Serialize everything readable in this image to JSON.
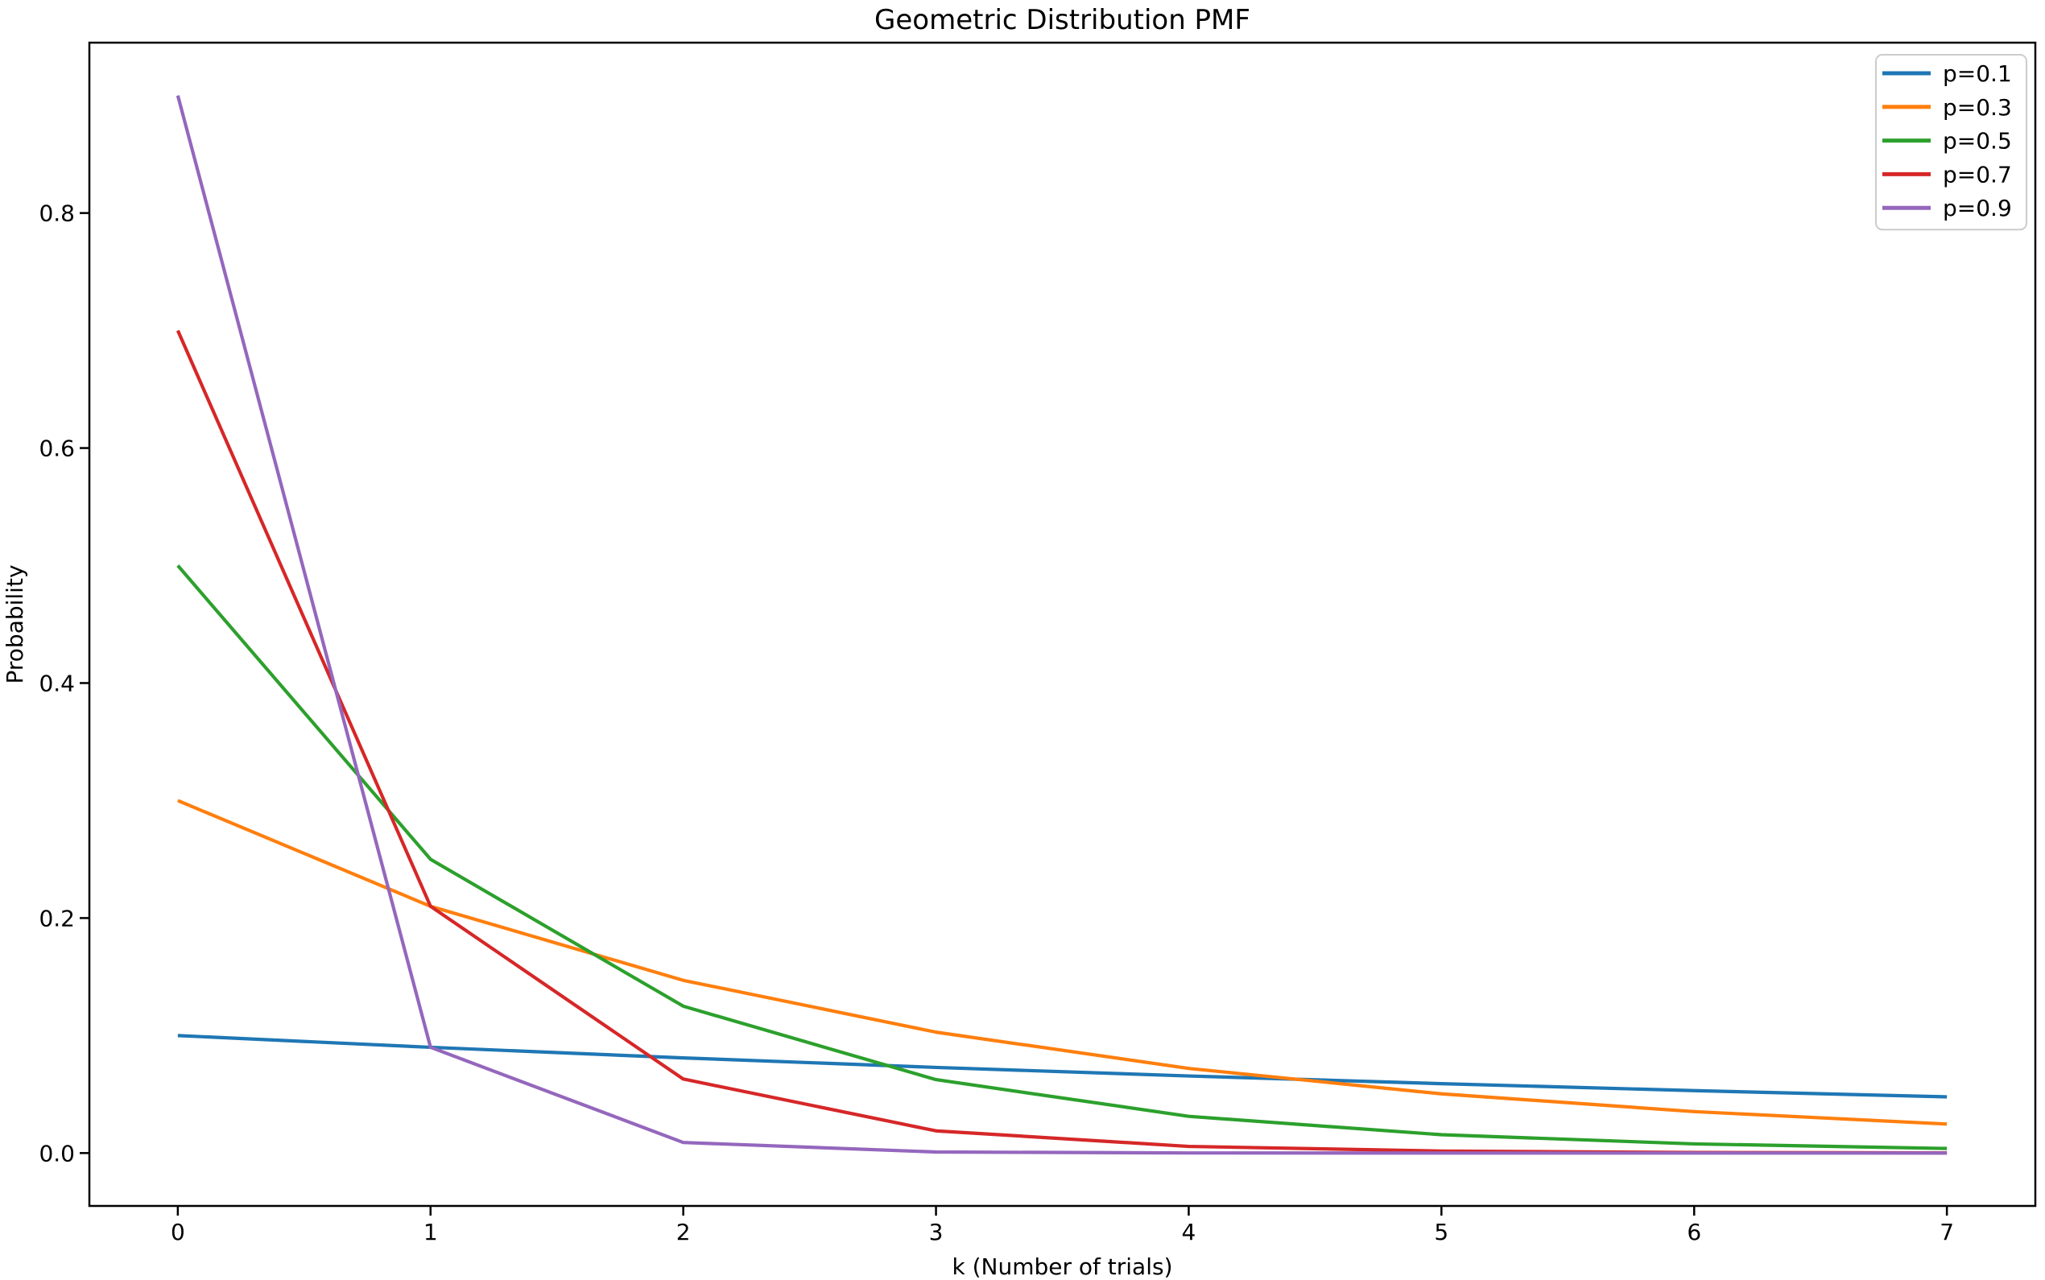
{
  "figure": {
    "background": "#ffffff",
    "spine_color": "#000000"
  },
  "chart_data": {
    "type": "line",
    "title": "Geometric Distribution PMF",
    "xlabel": "k (Number of trials)",
    "ylabel": "Probability",
    "x": [
      0,
      1,
      2,
      3,
      4,
      5,
      6,
      7
    ],
    "series": [
      {
        "name": "p=0.1",
        "color": "#1f77b4",
        "values": [
          0.1,
          0.09,
          0.081,
          0.0729,
          0.06561,
          0.059049,
          0.0531441,
          0.04782969
        ]
      },
      {
        "name": "p=0.3",
        "color": "#ff7f0e",
        "values": [
          0.3,
          0.21,
          0.147,
          0.1029,
          0.07203,
          0.050421,
          0.0352947,
          0.02470629
        ]
      },
      {
        "name": "p=0.5",
        "color": "#2ca02c",
        "values": [
          0.5,
          0.25,
          0.125,
          0.0625,
          0.03125,
          0.015625,
          0.0078125,
          0.00390625
        ]
      },
      {
        "name": "p=0.7",
        "color": "#d62728",
        "values": [
          0.7,
          0.21,
          0.063,
          0.0189,
          0.00567,
          0.001701,
          0.0005103,
          0.00015309
        ]
      },
      {
        "name": "p=0.9",
        "color": "#9467bd",
        "values": [
          0.9,
          0.09,
          0.009,
          0.0009,
          9e-05,
          9e-06,
          9e-07,
          9e-08
        ]
      }
    ],
    "xticks": [
      0,
      1,
      2,
      3,
      4,
      5,
      6,
      7
    ],
    "xtick_labels": [
      "0",
      "1",
      "2",
      "3",
      "4",
      "5",
      "6",
      "7"
    ],
    "yticks": [
      0.0,
      0.2,
      0.4,
      0.6,
      0.8
    ],
    "ytick_labels": [
      "0.0",
      "0.2",
      "0.4",
      "0.6",
      "0.8"
    ],
    "xlim": [
      -0.35,
      7.35
    ],
    "ylim": [
      -0.045,
      0.945
    ],
    "grid": false,
    "legend": {
      "position": "upper right",
      "entries": [
        "p=0.1",
        "p=0.3",
        "p=0.5",
        "p=0.7",
        "p=0.9"
      ],
      "frame_color": "#cccccc",
      "frame_fill": "#ffffff"
    }
  }
}
